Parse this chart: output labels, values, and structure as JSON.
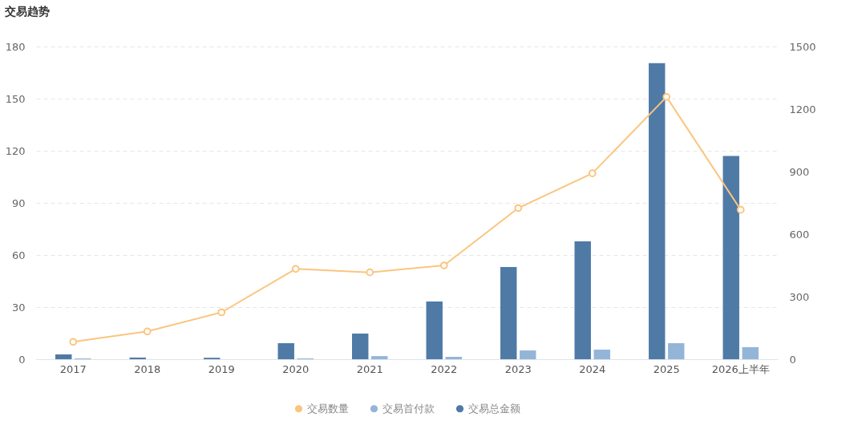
{
  "chart_data": {
    "type": "bar",
    "title": "交易趋势",
    "categories": [
      "2017",
      "2018",
      "2019",
      "2020",
      "2021",
      "2022",
      "2023",
      "2024",
      "2025",
      "2026上半年"
    ],
    "series": [
      {
        "name": "交易数量",
        "type": "line",
        "color": "#fbc57f",
        "values": [
          10,
          16,
          27,
          52,
          50,
          54,
          87,
          107,
          151,
          86
        ]
      },
      {
        "name": "交易首付款",
        "type": "bar",
        "axis": "y2",
        "color": "#93b5d8",
        "values": [
          4,
          null,
          null,
          4,
          15,
          12,
          42,
          46,
          77,
          58
        ]
      },
      {
        "name": "交易总金额",
        "type": "bar",
        "axis": "y2",
        "color": "#4f7aa6",
        "values": [
          23,
          8,
          7,
          77,
          123,
          277,
          442,
          565,
          1420,
          975
        ]
      }
    ],
    "ylim": [
      0,
      180
    ],
    "yticks": [
      0,
      30,
      60,
      90,
      120,
      150,
      180
    ],
    "y2lim": [
      0,
      1500
    ],
    "y2ticks": [
      0,
      300,
      600,
      900,
      {
        "value": 1200,
        "label": "1200"
      },
      {
        "value": 1500,
        "label": "1500"
      }
    ],
    "grid": "y",
    "legend": "bottom",
    "marker": "circle",
    "line_style": "solid"
  }
}
